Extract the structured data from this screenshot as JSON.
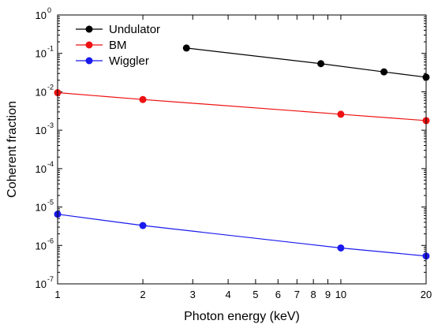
{
  "chart_data": {
    "type": "line",
    "xscale": "log",
    "yscale": "log",
    "xlabel": "Photon energy (keV)",
    "ylabel": "Coherent fraction",
    "xlim": [
      1,
      20
    ],
    "ylim": [
      1e-07,
      1
    ],
    "x_ticks": [
      {
        "value": 1,
        "label": "1"
      },
      {
        "value": 2,
        "label": "2"
      },
      {
        "value": 3,
        "label": "3"
      },
      {
        "value": 4,
        "label": "4"
      },
      {
        "value": 5,
        "label": "5"
      },
      {
        "value": 6,
        "label": "6"
      },
      {
        "value": 7,
        "label": "7"
      },
      {
        "value": 8,
        "label": "8"
      },
      {
        "value": 9,
        "label": "9"
      },
      {
        "value": 10,
        "label": "10"
      },
      {
        "value": 20,
        "label": "20"
      }
    ],
    "y_ticks": [
      {
        "value": 1e-07,
        "base": "10",
        "exp": "-7"
      },
      {
        "value": 1e-06,
        "base": "10",
        "exp": "-6"
      },
      {
        "value": 1e-05,
        "base": "10",
        "exp": "-5"
      },
      {
        "value": 0.0001,
        "base": "10",
        "exp": "-4"
      },
      {
        "value": 0.001,
        "base": "10",
        "exp": "-3"
      },
      {
        "value": 0.01,
        "base": "10",
        "exp": "-2"
      },
      {
        "value": 0.1,
        "base": "10",
        "exp": "-1"
      },
      {
        "value": 1,
        "base": "10",
        "exp": "0"
      }
    ],
    "legend_position": "top-left",
    "grid": false,
    "series": [
      {
        "name": "Undulator",
        "color": "#000000",
        "x": [
          2.85,
          8.5,
          14.2,
          20
        ],
        "y": [
          0.138,
          0.054,
          0.033,
          0.024
        ]
      },
      {
        "name": "BM",
        "color": "#ee1111",
        "x": [
          1,
          2,
          10,
          20
        ],
        "y": [
          0.0095,
          0.0063,
          0.0026,
          0.00178
        ]
      },
      {
        "name": "Wiggler",
        "color": "#1a1aee",
        "x": [
          1,
          2,
          10,
          20
        ],
        "y": [
          6.5e-06,
          3.3e-06,
          8.6e-07,
          5.3e-07
        ]
      }
    ]
  }
}
